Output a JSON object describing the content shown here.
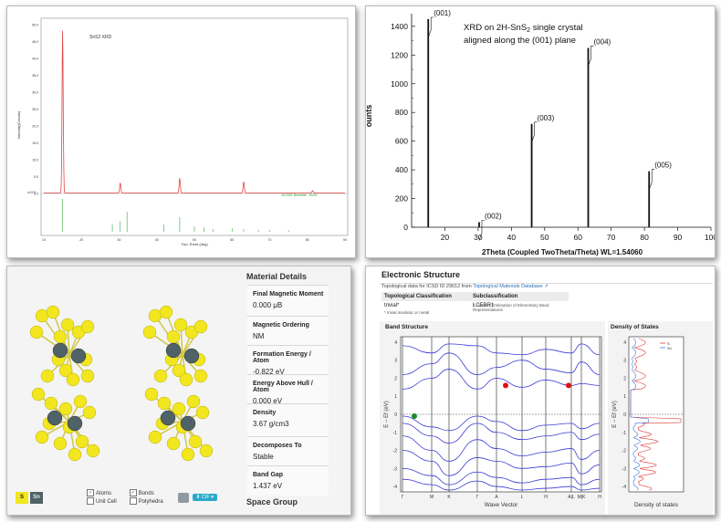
{
  "panel1": {
    "legend": "SnS2 XRD",
    "ylabel": "Intensity(Counts)",
    "xlabel": "Two-Theta (deg)",
    "ref_label": "15-0301 Berndtite - SnS2",
    "scale_note": "x10^3",
    "yticks": [
      "0.0",
      "5.0",
      "10.0",
      "15.0",
      "20.0",
      "25.0",
      "30.0",
      "35.0",
      "40.0",
      "45.0",
      "50.0"
    ],
    "xticks": [
      "10",
      "20",
      "30",
      "40",
      "50",
      "60",
      "70",
      "80",
      "90"
    ]
  },
  "chart_data": {
    "type": "bar",
    "title": "XRD on 2H-SnS2 single crystal aligned along the (001) plane",
    "xlabel": "2Theta (Coupled TwoTheta/Theta) WL=1.54060",
    "ylabel": "Counts",
    "xlim": [
      10,
      100
    ],
    "ylim": [
      0,
      1450
    ],
    "series": [
      {
        "name": "peaks",
        "x": [
          15,
          30.3,
          46.1,
          63.1,
          81.4
        ],
        "values": [
          1450,
          35,
          720,
          1250,
          390
        ],
        "labels": [
          "(001)",
          "(002)",
          "(003)",
          "(004)",
          "(005)"
        ]
      }
    ],
    "yticks": [
      "0",
      "200",
      "400",
      "600",
      "800",
      "1000",
      "1200",
      "1400"
    ],
    "xticks": [
      "20",
      "30",
      "40",
      "50",
      "60",
      "70",
      "80",
      "90",
      "100"
    ],
    "title_line1": "XRD on 2H-SnS",
    "title_sub": "2",
    "title_line1b": " single crystal",
    "title_line2": "aligned along the (001) plane",
    "ylabel_visible": "ounts",
    "xlabel_visible": "2Theta (Coupled TwoTheta/Theta) WL=1.54060"
  },
  "panel3": {
    "title": "Material Details",
    "properties": [
      {
        "label": "Final Magnetic Moment",
        "value": "0.000 μB"
      },
      {
        "label": "Magnetic Ordering",
        "value": "NM"
      },
      {
        "label": "Formation Energy / Atom",
        "value": "-0.822 eV"
      },
      {
        "label": "Energy Above Hull / Atom",
        "value": "0.000 eV"
      },
      {
        "label": "Density",
        "value": "3.67 g/cm3"
      },
      {
        "label": "Decomposes To",
        "value": "Stable"
      },
      {
        "label": "Band Gap",
        "value": "1.437 eV"
      }
    ],
    "space_group": "Space Group",
    "legend": {
      "s": "S",
      "sn": "Sn",
      "atoms": "Atoms",
      "unit_cell": "Unit Cell",
      "bonds": "Bonds",
      "polyhedra": "Polyhedra",
      "cif": "CIF"
    },
    "colors": {
      "sulfur": "#f2e61f",
      "tin": "#4f6267"
    }
  },
  "panel4": {
    "title": "Electronic Structure",
    "topo_text": "Topological data for ICSD ID 29012 from",
    "topo_link": "Topological Materials Database",
    "col1": "Topological Classification",
    "col2": "Subclassification",
    "val1": "trivial*",
    "val2": "LCEBR†",
    "note1": "* trivial insulator or metal",
    "note2": "† Linear Combination of Elementary Band Representations",
    "band_title": "Band Structure",
    "dos_title": "Density of States",
    "band_xlabel": "Wave Vector",
    "dos_xlabel": "Density of states",
    "ylabel": "E − Ef (eV)",
    "yticks": [
      "4",
      "3",
      "2",
      "1",
      "0",
      "-1",
      "-2",
      "-3",
      "-4"
    ],
    "kpoints": [
      "Γ",
      "M",
      "K",
      "Γ",
      "A",
      "L",
      "H",
      "A|L",
      "M|K",
      "H"
    ],
    "dos_legend": [
      "S",
      "Sn"
    ]
  }
}
